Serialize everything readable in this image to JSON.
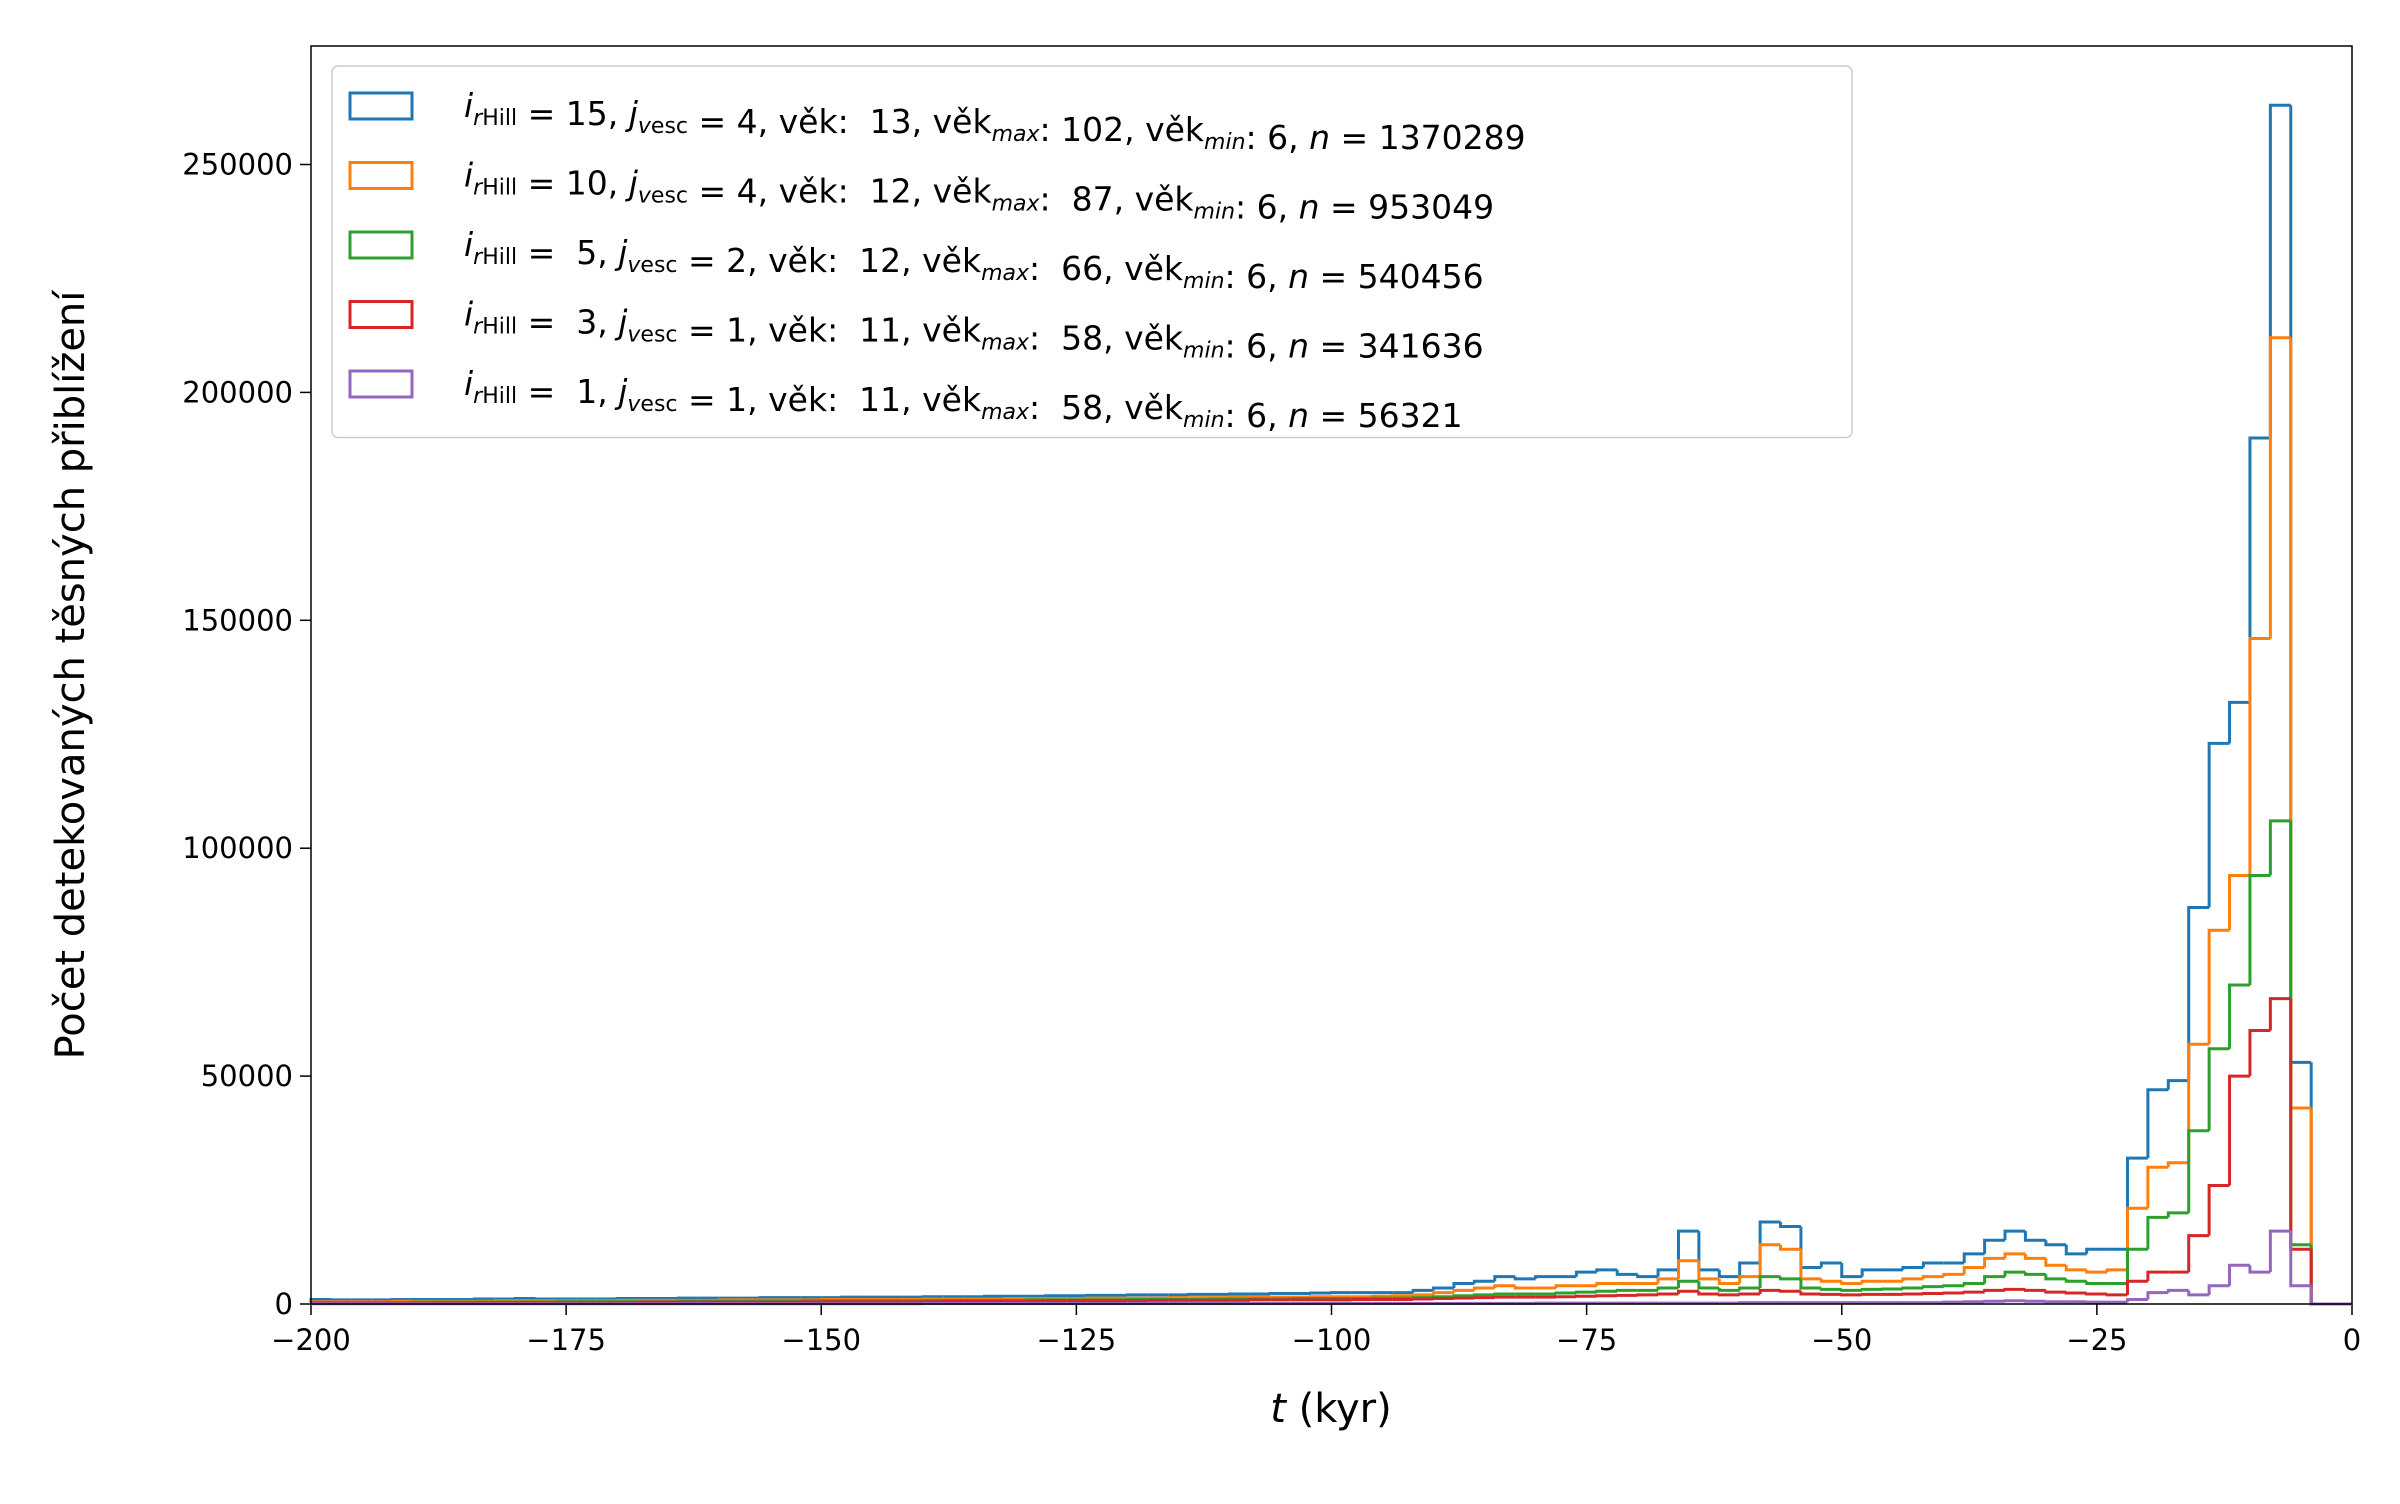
{
  "chart_data": {
    "type": "histogram",
    "histtype": "step",
    "xlabel": "t (kyr)",
    "ylabel": "Počet detekovaných těsných přiblížení",
    "xlim": [
      -200,
      0
    ],
    "ylim": [
      0,
      276000
    ],
    "xticks": [
      {
        "value": -200,
        "label": "−200"
      },
      {
        "value": -175,
        "label": "−175"
      },
      {
        "value": -150,
        "label": "−150"
      },
      {
        "value": -125,
        "label": "−125"
      },
      {
        "value": -100,
        "label": "−100"
      },
      {
        "value": -75,
        "label": "−75"
      },
      {
        "value": -50,
        "label": "−50"
      },
      {
        "value": -25,
        "label": "−25"
      },
      0
    ],
    "yticks": [
      0,
      50000,
      100000,
      150000,
      200000,
      250000
    ],
    "legend": "upper left",
    "bins": [
      -200,
      -198,
      -196,
      -194,
      -192,
      -190,
      -188,
      -186,
      -184,
      -182,
      -180,
      -178,
      -176,
      -174,
      -172,
      -170,
      -168,
      -166,
      -164,
      -162,
      -160,
      -158,
      -156,
      -154,
      -152,
      -150,
      -148,
      -146,
      -144,
      -142,
      -140,
      -138,
      -136,
      -134,
      -132,
      -130,
      -128,
      -126,
      -124,
      -122,
      -120,
      -118,
      -116,
      -114,
      -112,
      -110,
      -108,
      -106,
      -104,
      -102,
      -100,
      -98,
      -96,
      -94,
      -92,
      -90,
      -88,
      -86,
      -84,
      -82,
      -80,
      -78,
      -76,
      -74,
      -72,
      -70,
      -68,
      -66,
      -64,
      -62,
      -60,
      -58,
      -56,
      -54,
      -52,
      -50,
      -48,
      -46,
      -44,
      -42,
      -40,
      -38,
      -36,
      -34,
      -32,
      -30,
      -28,
      -26,
      -24,
      -22,
      -20,
      -18,
      -16,
      -14,
      -12,
      -10,
      -8,
      -6,
      -4,
      -2,
      0
    ],
    "series": [
      {
        "name": "irHill = 15, jvesc = 4, věk:  13, věkmax: 102, věkmin: 6, n = 1370289",
        "color": "#1f77b4",
        "values": [
          1000,
          900,
          900,
          900,
          1000,
          1000,
          1000,
          1000,
          1100,
          1100,
          1200,
          1100,
          1100,
          1100,
          1100,
          1200,
          1200,
          1200,
          1300,
          1300,
          1300,
          1300,
          1400,
          1400,
          1400,
          1400,
          1500,
          1500,
          1500,
          1500,
          1600,
          1600,
          1600,
          1700,
          1700,
          1700,
          1800,
          1800,
          1900,
          1900,
          2000,
          2000,
          2000,
          2100,
          2100,
          2200,
          2200,
          2300,
          2300,
          2400,
          2500,
          2500,
          2500,
          2500,
          3000,
          3500,
          4500,
          5000,
          6000,
          5500,
          6000,
          6000,
          7000,
          7500,
          6500,
          6000,
          7500,
          16000,
          7500,
          6000,
          9000,
          18000,
          17000,
          8000,
          9000,
          6000,
          7500,
          7500,
          8000,
          9000,
          9000,
          11000,
          14000,
          16000,
          14000,
          13000,
          11000,
          12000,
          12000,
          32000,
          47000,
          49000,
          87000,
          123000,
          132000,
          190000,
          263000,
          53000,
          0,
          0
        ]
      },
      {
        "name": "irHill = 10, jvesc = 4, věk:  12, věkmax:  87, věkmin: 6, n = 953049",
        "color": "#ff7f0e",
        "values": [
          500,
          500,
          500,
          500,
          600,
          600,
          600,
          600,
          600,
          700,
          700,
          700,
          700,
          700,
          700,
          800,
          800,
          800,
          800,
          800,
          900,
          900,
          900,
          900,
          900,
          1000,
          1000,
          1000,
          1000,
          1000,
          1100,
          1100,
          1100,
          1100,
          1200,
          1200,
          1200,
          1200,
          1300,
          1300,
          1300,
          1300,
          1400,
          1400,
          1400,
          1500,
          1500,
          1500,
          1500,
          1600,
          1600,
          1600,
          1700,
          1800,
          2000,
          2500,
          3000,
          3500,
          4000,
          3500,
          3500,
          4000,
          4000,
          4500,
          4500,
          4500,
          5500,
          9500,
          5500,
          4500,
          6000,
          13000,
          12000,
          5500,
          5000,
          4500,
          5000,
          5000,
          5500,
          6000,
          6500,
          8000,
          10000,
          11000,
          10000,
          8500,
          7500,
          7000,
          7500,
          21000,
          30000,
          31000,
          57000,
          82000,
          94000,
          146000,
          212000,
          43000,
          0,
          0
        ]
      },
      {
        "name": "irHill =  5, jvesc = 2, věk:  12, věkmax:  66, věkmin: 6, n = 540456",
        "color": "#2ca02c",
        "values": [
          300,
          300,
          300,
          300,
          300,
          400,
          400,
          400,
          400,
          400,
          400,
          400,
          500,
          500,
          500,
          500,
          500,
          500,
          600,
          600,
          600,
          600,
          600,
          600,
          700,
          700,
          700,
          700,
          700,
          700,
          800,
          800,
          800,
          800,
          800,
          900,
          900,
          900,
          900,
          900,
          1000,
          1000,
          1000,
          1000,
          1100,
          1100,
          1100,
          1100,
          1200,
          1200,
          1200,
          1200,
          1300,
          1300,
          1400,
          1600,
          1800,
          2000,
          2200,
          2200,
          2200,
          2400,
          2600,
          2800,
          3000,
          3000,
          3500,
          5000,
          3500,
          3000,
          3500,
          6000,
          5500,
          3500,
          3200,
          3000,
          3200,
          3300,
          3500,
          3800,
          4000,
          4500,
          6000,
          7000,
          6500,
          5500,
          5000,
          4500,
          4500,
          12000,
          19000,
          20000,
          38000,
          56000,
          70000,
          94000,
          106000,
          13000,
          0,
          0
        ]
      },
      {
        "name": "irHill =  3, jvesc = 1, věk:  11, věkmax:  58, věkmin: 6, n = 341636",
        "color": "#d62728",
        "values": [
          200,
          200,
          200,
          200,
          200,
          200,
          300,
          300,
          300,
          300,
          300,
          300,
          300,
          300,
          300,
          300,
          400,
          400,
          400,
          400,
          400,
          400,
          400,
          400,
          500,
          500,
          500,
          500,
          500,
          500,
          500,
          600,
          600,
          600,
          600,
          600,
          700,
          700,
          700,
          700,
          700,
          800,
          800,
          800,
          800,
          800,
          900,
          900,
          900,
          900,
          900,
          1000,
          1000,
          1000,
          1100,
          1200,
          1300,
          1400,
          1500,
          1500,
          1500,
          1600,
          1700,
          1800,
          1900,
          2000,
          2200,
          2800,
          2200,
          2000,
          2200,
          3000,
          2800,
          2200,
          2100,
          2000,
          2100,
          2100,
          2200,
          2300,
          2400,
          2600,
          3000,
          3200,
          3000,
          2600,
          2400,
          2200,
          2000,
          5000,
          7000,
          7000,
          15000,
          26000,
          50000,
          60000,
          67000,
          12000,
          0,
          0
        ]
      },
      {
        "name": "irHill =  1, jvesc = 1, věk:  11, věkmax:  58, věkmin: 6, n = 56321",
        "color": "#9467bd",
        "values": [
          50,
          50,
          50,
          50,
          50,
          50,
          50,
          50,
          50,
          50,
          50,
          50,
          50,
          50,
          50,
          50,
          50,
          50,
          50,
          50,
          50,
          50,
          50,
          50,
          50,
          50,
          50,
          50,
          50,
          50,
          100,
          100,
          100,
          100,
          100,
          100,
          100,
          100,
          100,
          100,
          100,
          100,
          100,
          100,
          100,
          100,
          100,
          100,
          100,
          100,
          150,
          150,
          150,
          150,
          150,
          150,
          150,
          150,
          150,
          150,
          200,
          200,
          200,
          200,
          200,
          200,
          200,
          200,
          200,
          200,
          300,
          300,
          300,
          300,
          300,
          300,
          300,
          300,
          300,
          300,
          400,
          500,
          600,
          700,
          600,
          500,
          500,
          400,
          400,
          1000,
          2500,
          3000,
          2000,
          4000,
          8500,
          7000,
          16000,
          4000,
          0,
          0
        ]
      }
    ]
  }
}
